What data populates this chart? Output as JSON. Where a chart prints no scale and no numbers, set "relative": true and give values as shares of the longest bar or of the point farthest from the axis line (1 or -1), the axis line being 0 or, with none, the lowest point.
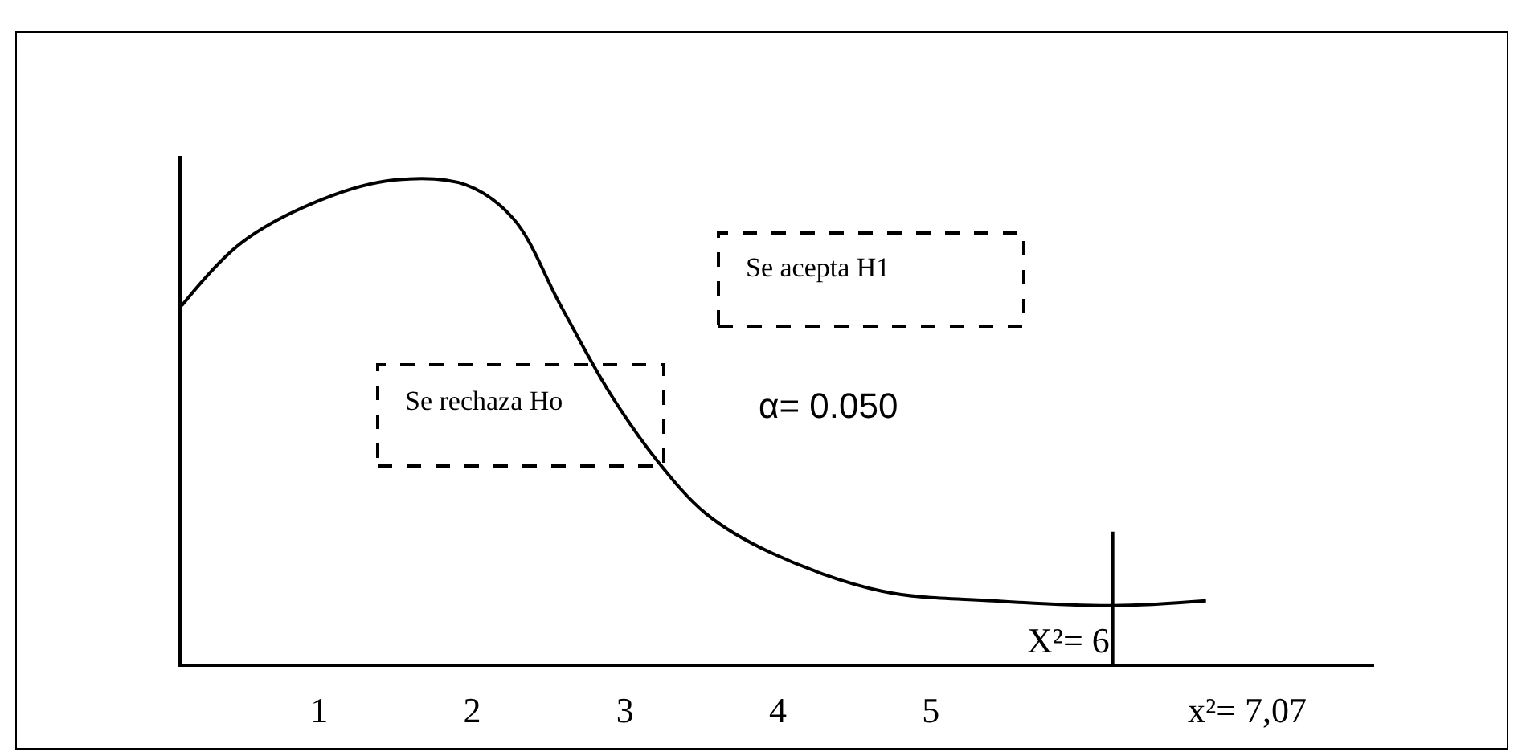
{
  "chart_data": {
    "type": "line",
    "relative": true,
    "color": "#000000",
    "x": [
      0.1,
      0.49,
      1.02,
      1.49,
      1.96,
      2.27,
      2.58,
      2.9,
      3.21,
      3.53,
      3.95,
      4.68,
      5.41,
      6.19,
      6.8
    ],
    "values": [
      0.74,
      0.87,
      0.96,
      1.0,
      0.99,
      0.92,
      0.74,
      0.56,
      0.42,
      0.31,
      0.23,
      0.15,
      0.13,
      0.12,
      0.13
    ],
    "xlim": [
      0.1,
      7.9
    ],
    "xticks": [
      1,
      2,
      3,
      4,
      5,
      {
        "value": 7.07,
        "label": "x²= 7,07"
      }
    ],
    "ref_lines": [
      {
        "axis": "x",
        "value": 6.19,
        "label": "X²= 6"
      }
    ],
    "annotations": [
      "Se acepta H1",
      "Se rechaza Ho",
      "α= 0.050"
    ],
    "marker": "none",
    "line_style": "solid"
  }
}
